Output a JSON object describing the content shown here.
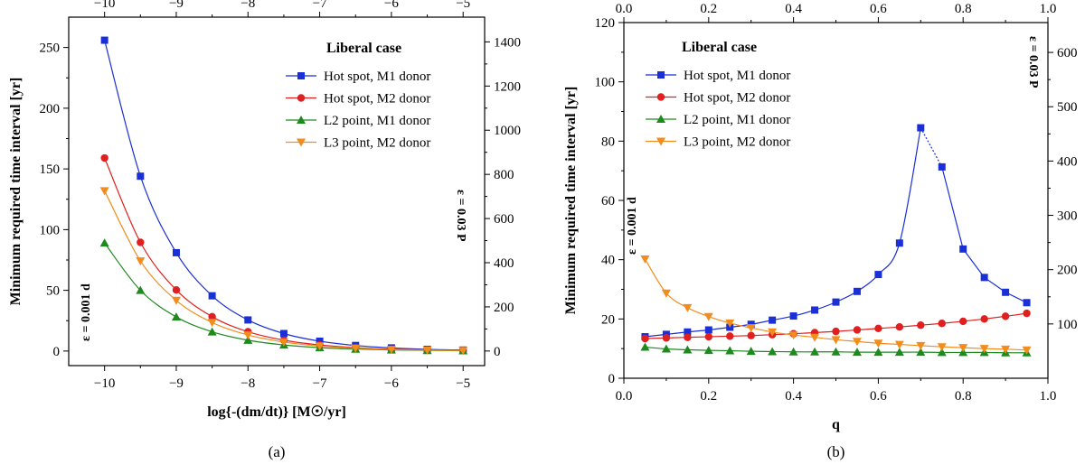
{
  "chart_data": [
    {
      "type": "line",
      "title": "Liberal case",
      "caption": "(a)",
      "xlabel": "log{-(dm/dt)} [M☉/yr]",
      "ylabel": "Minimum required time interval [yr]",
      "x_ticks": [
        -10,
        -9,
        -8,
        -7,
        -6,
        -5
      ],
      "xlim": [
        -10.5,
        -4.7
      ],
      "ylim": [
        -12,
        275
      ],
      "y_ticks": [
        0,
        50,
        100,
        150,
        200,
        250
      ],
      "y2lim": [
        -66,
        1512
      ],
      "y2_ticks": [
        0,
        200,
        400,
        600,
        800,
        1000,
        1200,
        1400
      ],
      "left_note": "ε = 0.001 d",
      "right_note": "ε = 0.03 P",
      "x": [
        -10,
        -9.5,
        -9,
        -8.5,
        -8,
        -7.5,
        -7,
        -6.5,
        -6,
        -5.5,
        -5
      ],
      "series": [
        {
          "name": "Hot spot, M1 donor",
          "color": "#1a2fd6",
          "marker": "square",
          "values": [
            256,
            144,
            81,
            45.5,
            25.6,
            14.4,
            8.1,
            4.6,
            2.6,
            1.4,
            0.8
          ]
        },
        {
          "name": "Hot spot, M2 donor",
          "color": "#e02020",
          "marker": "circle",
          "values": [
            159,
            89.5,
            50.3,
            28.3,
            15.9,
            8.9,
            5.0,
            2.8,
            1.6,
            0.9,
            0.5
          ]
        },
        {
          "name": "L2 point, M1 donor",
          "color": "#1e8a1e",
          "marker": "triangle-up",
          "values": [
            89,
            50,
            28.1,
            15.8,
            8.9,
            5.0,
            2.8,
            1.6,
            0.9,
            0.5,
            0.3
          ]
        },
        {
          "name": "L3 point, M2 donor",
          "color": "#f28c1c",
          "marker": "triangle-down",
          "values": [
            132,
            74.2,
            41.7,
            23.5,
            13.2,
            7.4,
            4.2,
            2.3,
            1.3,
            0.7,
            0.4
          ]
        }
      ]
    },
    {
      "type": "line",
      "title": "Liberal case",
      "caption": "(b)",
      "xlabel": "q",
      "ylabel": "Minimum required time interval [yr]",
      "x_ticks": [
        0.0,
        0.2,
        0.4,
        0.6,
        0.8,
        1.0
      ],
      "x_tick_labels": [
        "0.0",
        "0.2",
        "0.4",
        "0.6",
        "0.8",
        "1.0"
      ],
      "xlim": [
        0,
        1
      ],
      "ylim": [
        0,
        120
      ],
      "y_ticks": [
        0,
        20,
        40,
        60,
        80,
        100,
        120
      ],
      "y2lim": [
        0,
        655
      ],
      "y2_ticks": [
        100,
        200,
        300,
        400,
        500,
        600
      ],
      "left_note": "ε = 0.001 d",
      "right_note": "ε = 0.03 P",
      "x": [
        0.05,
        0.1,
        0.15,
        0.2,
        0.25,
        0.3,
        0.35,
        0.4,
        0.45,
        0.5,
        0.55,
        0.6,
        0.65,
        0.7,
        0.75,
        0.8,
        0.85,
        0.9,
        0.95
      ],
      "series": [
        {
          "name": "Hot spot, M1 donor",
          "color": "#1a2fd6",
          "marker": "square",
          "values": [
            14,
            14.8,
            15.6,
            16.3,
            17.2,
            18.2,
            19.6,
            21.0,
            23.0,
            25.7,
            29.3,
            35.0,
            45.6,
            84.5,
            71.3,
            43.6,
            34.0,
            29.0,
            25.5
          ]
        },
        {
          "name": "Hot spot, M2 donor",
          "color": "#e02020",
          "marker": "circle",
          "values": [
            13.4,
            13.6,
            13.8,
            14.0,
            14.2,
            14.4,
            14.7,
            15.0,
            15.4,
            15.8,
            16.3,
            16.8,
            17.3,
            17.9,
            18.5,
            19.2,
            20.0,
            20.9,
            21.9
          ]
        },
        {
          "name": "L2 point, M1 donor",
          "color": "#1e8a1e",
          "marker": "triangle-up",
          "values": [
            10.5,
            9.9,
            9.6,
            9.4,
            9.3,
            9.1,
            9.0,
            8.9,
            8.9,
            8.9,
            8.8,
            8.8,
            8.8,
            8.8,
            8.7,
            8.7,
            8.7,
            8.6,
            8.6
          ]
        },
        {
          "name": "L3 point, M2 donor",
          "color": "#f28c1c",
          "marker": "triangle-down",
          "values": [
            40.2,
            28.7,
            23.8,
            20.8,
            18.6,
            17.0,
            15.6,
            14.6,
            13.8,
            13.0,
            12.4,
            11.8,
            11.4,
            11.0,
            10.6,
            10.3,
            10.0,
            9.8,
            9.5
          ]
        }
      ]
    }
  ]
}
